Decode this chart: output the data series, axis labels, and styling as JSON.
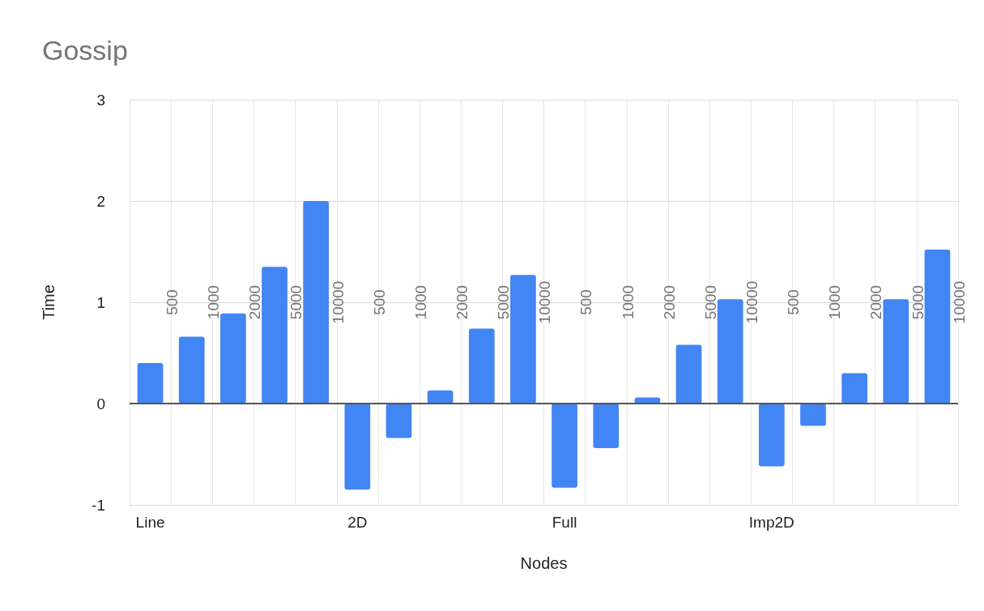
{
  "chart_data": {
    "type": "bar",
    "title": "Gossip",
    "xlabel": "Nodes",
    "ylabel": "Time",
    "categories": [
      "Line",
      null,
      null,
      null,
      null,
      "2D",
      null,
      null,
      null,
      null,
      "Full",
      null,
      null,
      null,
      null,
      "Imp2D",
      null,
      null,
      null,
      null
    ],
    "series": [
      {
        "color": "#4285f4",
        "values": [
          0.4,
          0.66,
          0.89,
          1.35,
          2.0,
          -0.85,
          -0.34,
          0.13,
          0.74,
          1.27,
          -0.83,
          -0.44,
          0.06,
          0.58,
          1.03,
          -0.62,
          -0.22,
          0.3,
          1.03,
          1.52
        ]
      }
    ],
    "annotations": [
      "500",
      "1000",
      "2000",
      "5000",
      "10000",
      "500",
      "1000",
      "2000",
      "5000",
      "10000",
      "500",
      "1000",
      "2000",
      "5000",
      "10000",
      "500",
      "1000",
      "2000",
      "5000",
      "10000"
    ],
    "ylim": [
      -1,
      3
    ],
    "yticks": [
      -1,
      0,
      1,
      2,
      3
    ],
    "grid": true
  }
}
